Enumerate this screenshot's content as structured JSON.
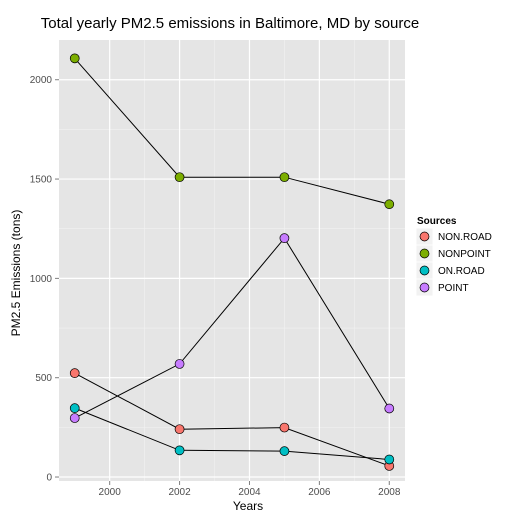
{
  "chart_data": {
    "type": "line",
    "title": "Total yearly PM2.5 emissions in Baltimore, MD by source",
    "xlabel": "Years",
    "ylabel": "PM2.5 Emissions (tons)",
    "xlim": [
      1998.55,
      2008.45
    ],
    "ylim": [
      -20,
      2200
    ],
    "x_ticks": [
      2000,
      2002,
      2004,
      2006,
      2008
    ],
    "y_ticks": [
      0,
      500,
      1000,
      1500,
      2000
    ],
    "x": [
      1999,
      2002,
      2005,
      2008
    ],
    "grid": true,
    "legend": {
      "title": "Sources",
      "position": "right"
    },
    "series": [
      {
        "name": "NON.ROAD",
        "color": "#F8766D",
        "values": [
          522.9,
          240.8,
          248.9,
          55.8
        ]
      },
      {
        "name": "NONPOINT",
        "color": "#7CAE00",
        "values": [
          2107.6,
          1509.5,
          1509.5,
          1373.2
        ]
      },
      {
        "name": "ON.ROAD",
        "color": "#00BFC4",
        "values": [
          346.8,
          134.3,
          130.4,
          88.3
        ]
      },
      {
        "name": "POINT",
        "color": "#C77CFF",
        "values": [
          296.8,
          569.3,
          1202.5,
          344.98
        ]
      }
    ]
  }
}
